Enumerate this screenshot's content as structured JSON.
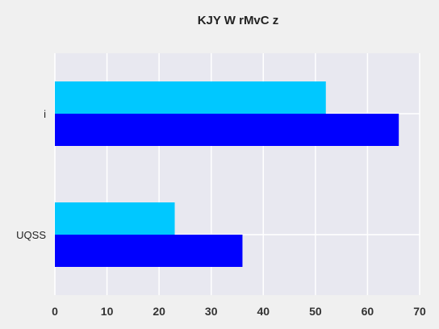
{
  "chart_data": {
    "type": "bar",
    "orientation": "horizontal",
    "title": "KJY W rMvC  z",
    "xlabel": "",
    "ylabel": "",
    "categories": [
      "i",
      "UQSS"
    ],
    "series": [
      {
        "values": [
          52,
          23
        ]
      },
      {
        "values": [
          66,
          36
        ]
      }
    ],
    "xlim": [
      0,
      70
    ],
    "xticks": [
      0,
      10,
      20,
      30,
      40,
      50,
      60,
      70
    ],
    "grid": true,
    "legend": "none",
    "colors": {
      "series": [
        "#00c8ff",
        "#0000ff"
      ],
      "plot_background": "#e8e8f0",
      "figure_background": "#f0f0f0",
      "grid": "#ffffff"
    }
  }
}
